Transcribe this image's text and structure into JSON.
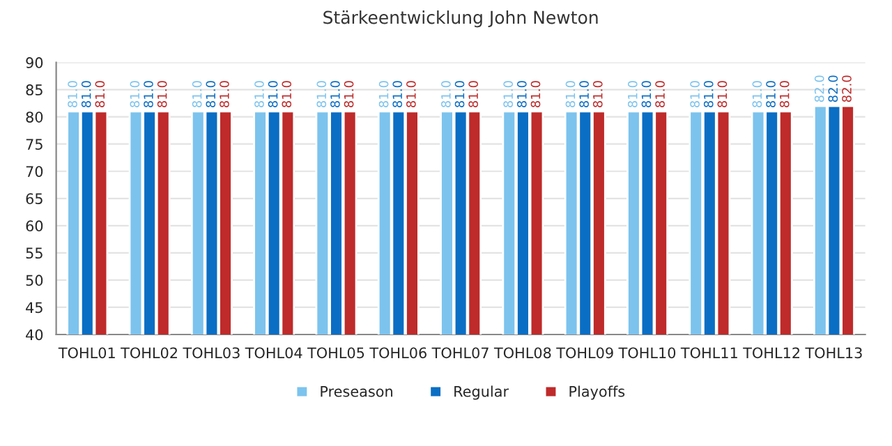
{
  "chart_data": {
    "type": "bar",
    "title": "Stärkeentwicklung John Newton",
    "categories": [
      "TOHL01",
      "TOHL02",
      "TOHL03",
      "TOHL04",
      "TOHL05",
      "TOHL06",
      "TOHL07",
      "TOHL08",
      "TOHL09",
      "TOHL10",
      "TOHL11",
      "TOHL12",
      "TOHL13"
    ],
    "series": [
      {
        "name": "Preseason",
        "color": "#7cc3ee",
        "values": [
          81,
          81,
          81,
          81,
          81,
          81,
          81,
          81,
          81,
          81,
          81,
          81,
          82
        ],
        "value_labels": [
          "81.0",
          "81.0",
          "81.0",
          "81.0",
          "81.0",
          "81.0",
          "81.0",
          "81.0",
          "81.0",
          "81.0",
          "81.0",
          "81.0",
          "82.0"
        ]
      },
      {
        "name": "Regular",
        "color": "#0a6ec4",
        "values": [
          81,
          81,
          81,
          81,
          81,
          81,
          81,
          81,
          81,
          81,
          81,
          81,
          82
        ],
        "value_labels": [
          "81.0",
          "81.0",
          "81.0",
          "81.0",
          "81.0",
          "81.0",
          "81.0",
          "81.0",
          "81.0",
          "81.0",
          "81.0",
          "81.0",
          "82.0"
        ]
      },
      {
        "name": "Playoffs",
        "color": "#bf2a2a",
        "values": [
          81,
          81,
          81,
          81,
          81,
          81,
          81,
          81,
          81,
          81,
          81,
          81,
          82
        ],
        "value_labels": [
          "81.0",
          "81.0",
          "81.0",
          "81.0",
          "81.0",
          "81.0",
          "81.0",
          "81.0",
          "81.0",
          "81.0",
          "81.0",
          "81.0",
          "82.0"
        ]
      }
    ],
    "ylim": [
      40,
      90
    ],
    "yticks": [
      40,
      45,
      50,
      55,
      60,
      65,
      70,
      75,
      80,
      85,
      90
    ],
    "grid": "y",
    "legend": "bottom"
  }
}
